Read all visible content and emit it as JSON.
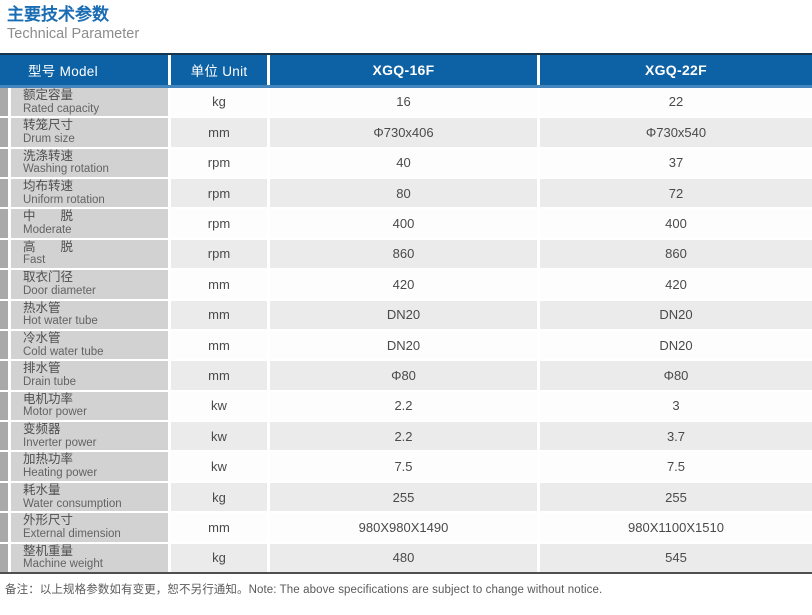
{
  "page": {
    "title_zh": "主要技术参数",
    "title_en": "Technical Parameter",
    "note": "备注：以上规格参数如有变更，恕不另行通知。Note: The above specifications are subject to change without notice."
  },
  "table": {
    "headers": {
      "model": "型号 Model",
      "unit": "单位 Unit",
      "col1": "XGQ-16F",
      "col2": "XGQ-22F"
    },
    "rows": [
      {
        "zh": "额定容量",
        "en": "Rated capacity",
        "unit": "kg",
        "v1": "16",
        "v2": "22"
      },
      {
        "zh": "转笼尺寸",
        "en": "Drum size",
        "unit": "mm",
        "v1": "Φ730x406",
        "v2": "Φ730x540"
      },
      {
        "zh": "洗涤转速",
        "en": "Washing rotation",
        "unit": "rpm",
        "v1": "40",
        "v2": "37"
      },
      {
        "zh": "均布转速",
        "en": "Uniform rotation",
        "unit": "rpm",
        "v1": "80",
        "v2": "72"
      },
      {
        "zh": "中　　脱",
        "en": "Moderate",
        "unit": "rpm",
        "v1": "400",
        "v2": "400"
      },
      {
        "zh": "高　　脱",
        "en": "Fast",
        "unit": "rpm",
        "v1": "860",
        "v2": "860"
      },
      {
        "zh": "取衣门径",
        "en": "Door diameter",
        "unit": "mm",
        "v1": "420",
        "v2": "420"
      },
      {
        "zh": "热水管",
        "en": "Hot  water tube",
        "unit": "mm",
        "v1": "DN20",
        "v2": "DN20"
      },
      {
        "zh": "冷水管",
        "en": "Cold water tube",
        "unit": "mm",
        "v1": "DN20",
        "v2": "DN20"
      },
      {
        "zh": "排水管",
        "en": "Drain tube",
        "unit": "mm",
        "v1": "Φ80",
        "v2": "Φ80"
      },
      {
        "zh": "电机功率",
        "en": "Motor power",
        "unit": "kw",
        "v1": "2.2",
        "v2": "3"
      },
      {
        "zh": "变频器",
        "en": "Inverter power",
        "unit": "kw",
        "v1": "2.2",
        "v2": "3.7"
      },
      {
        "zh": "加热功率",
        "en": "Heating power",
        "unit": "kw",
        "v1": "7.5",
        "v2": "7.5"
      },
      {
        "zh": "耗水量",
        "en": "Water consumption",
        "unit": "kg",
        "v1": "255",
        "v2": "255"
      },
      {
        "zh": "外形尺寸",
        "en": "External dimension",
        "unit": "mm",
        "v1": "980X980X1490",
        "v2": "980X1100X1510"
      },
      {
        "zh": "整机重量",
        "en": "Machine weight",
        "unit": "kg",
        "v1": "480",
        "v2": "545"
      }
    ]
  },
  "colors": {
    "header_bg": "#0d61a5",
    "header_top_line": "#16344c",
    "header_bottom_line": "#4286bd",
    "title_accent": "#1a6cb3",
    "label_cell_bg": "#d2d2d2",
    "left_strip": "#a9a9a9",
    "row_alt_bg": "#ebebeb",
    "table_bottom_line": "#4f4f4f"
  }
}
